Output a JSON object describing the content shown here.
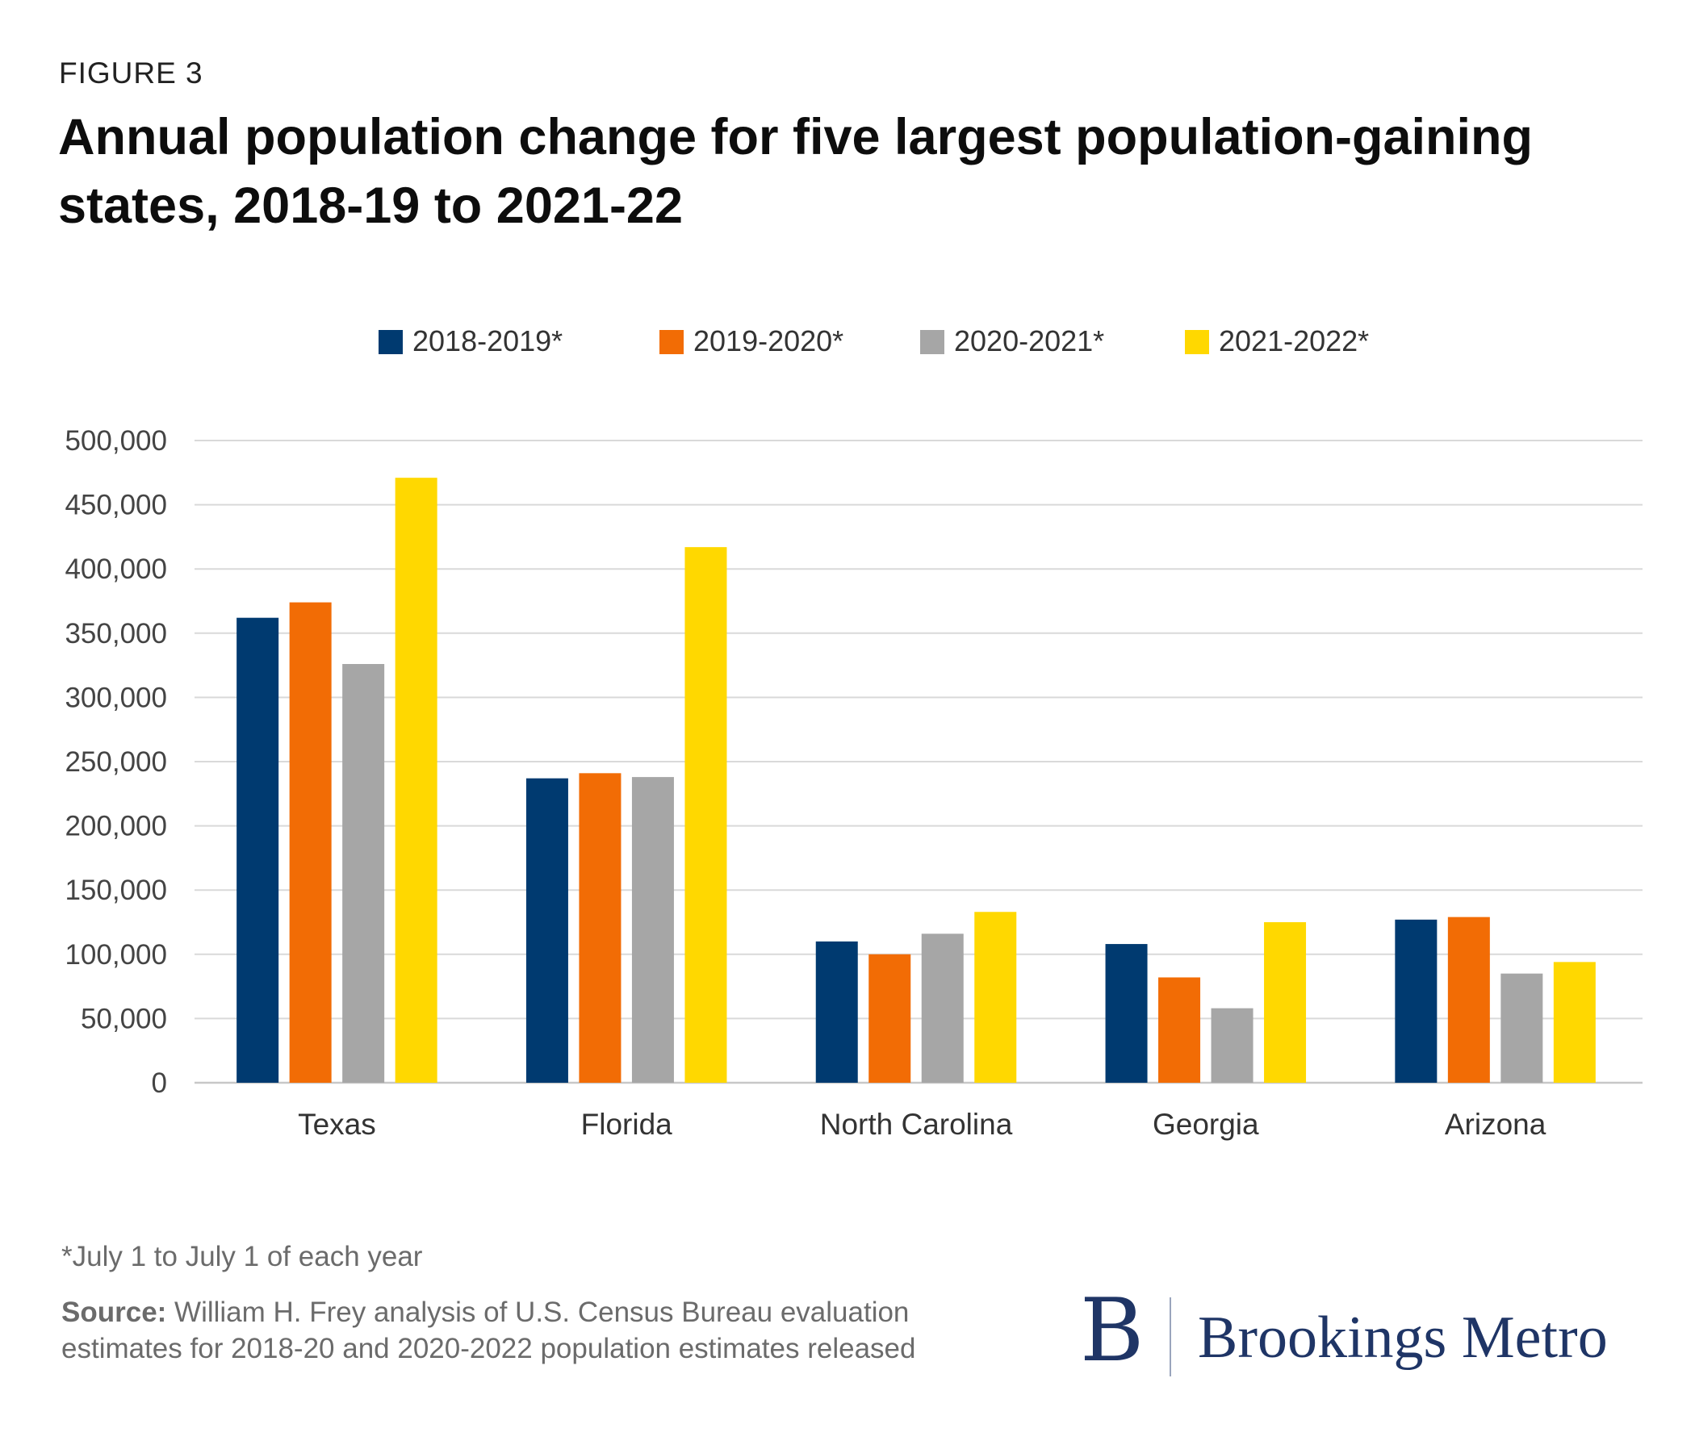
{
  "figure_label": "FIGURE 3",
  "chart_data": {
    "type": "bar",
    "title": "Annual population change for five largest population-gaining states, 2018-19 to 2021-22",
    "xlabel": "",
    "ylabel": "",
    "ylim": [
      0,
      500000
    ],
    "yticks": [
      "0",
      "50,000",
      "100,000",
      "150,000",
      "200,000",
      "250,000",
      "300,000",
      "350,000",
      "400,000",
      "450,000",
      "500,000"
    ],
    "grid": true,
    "legend_position": "top",
    "categories": [
      "Texas",
      "Florida",
      "North Carolina",
      "Georgia",
      "Arizona"
    ],
    "series": [
      {
        "name": "2018-2019*",
        "color": "#003a70",
        "values": [
          362000,
          237000,
          110000,
          108000,
          127000
        ]
      },
      {
        "name": "2019-2020*",
        "color": "#f26c05",
        "values": [
          374000,
          241000,
          100000,
          82000,
          129000
        ]
      },
      {
        "name": "2020-2021*",
        "color": "#a6a6a6",
        "values": [
          326000,
          238000,
          116000,
          58000,
          85000
        ]
      },
      {
        "name": "2021-2022*",
        "color": "#ffd800",
        "values": [
          471000,
          417000,
          133000,
          125000,
          94000
        ]
      }
    ]
  },
  "footnote": "*July 1 to July 1 of each year",
  "source": {
    "label": "Source:",
    "text": " William H. Frey analysis of U.S. Census Bureau evaluation estimates for 2018-20 and 2020-2022 population estimates released"
  },
  "logo": {
    "mark": "B",
    "name": "Brookings Metro"
  }
}
